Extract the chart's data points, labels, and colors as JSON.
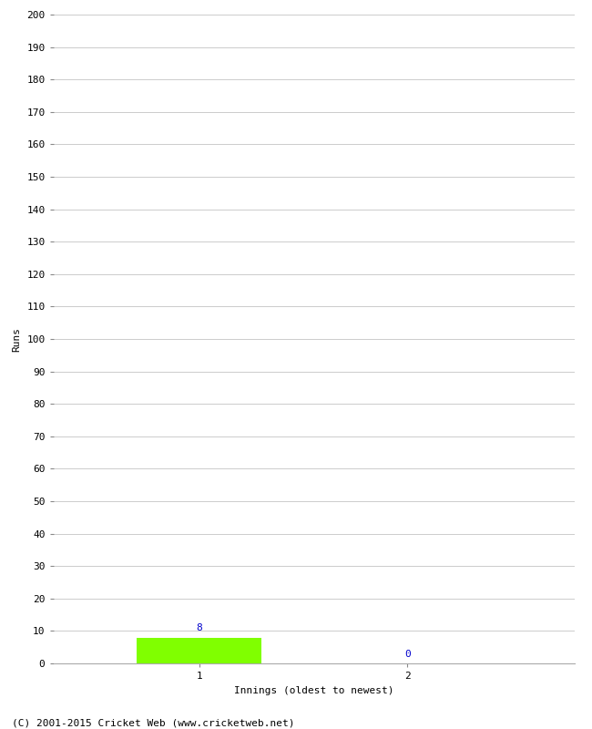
{
  "title": "",
  "xlabel": "Innings (oldest to newest)",
  "ylabel": "Runs",
  "ylim": [
    0,
    200
  ],
  "yticks": [
    0,
    10,
    20,
    30,
    40,
    50,
    60,
    70,
    80,
    90,
    100,
    110,
    120,
    130,
    140,
    150,
    160,
    170,
    180,
    190,
    200
  ],
  "innings": [
    1,
    2
  ],
  "values": [
    8,
    0
  ],
  "bar_color": "#80ff00",
  "bar_width": 0.6,
  "value_label_color": "#0000cc",
  "value_label_fontsize": 8,
  "axis_label_fontsize": 8,
  "tick_fontsize": 8,
  "grid_color": "#cccccc",
  "background_color": "#ffffff",
  "footer": "(C) 2001-2015 Cricket Web (www.cricketweb.net)",
  "footer_fontsize": 8,
  "xlim": [
    0.3,
    2.8
  ]
}
